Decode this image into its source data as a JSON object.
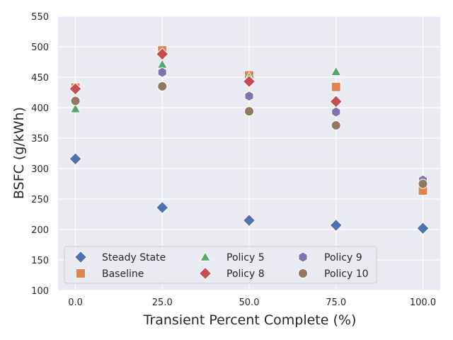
{
  "chart_data": {
    "type": "scatter",
    "title": "",
    "xlabel": "Transient Percent Complete (%)",
    "ylabel": "BSFC (g/kWh)",
    "xlim": [
      -5,
      105
    ],
    "ylim": [
      100,
      550
    ],
    "xticks": [
      0,
      25,
      50,
      75,
      100
    ],
    "xtick_labels": [
      "0.0",
      "25.0",
      "50.0",
      "75.0",
      "100.0"
    ],
    "yticks": [
      100,
      150,
      200,
      250,
      300,
      350,
      400,
      450,
      500,
      550
    ],
    "ytick_labels": [
      "100",
      "150",
      "200",
      "250",
      "300",
      "350",
      "400",
      "450",
      "500",
      "550"
    ],
    "grid": true,
    "background": "#eaeaf2",
    "legend": {
      "placement": "lower-left",
      "columns": 3
    },
    "series": [
      {
        "name": "Steady State",
        "marker": "diamond",
        "color": "#4c72b0",
        "x": [
          0,
          25,
          50,
          75,
          100
        ],
        "y": [
          316,
          236,
          215,
          207,
          202
        ]
      },
      {
        "name": "Baseline",
        "marker": "square",
        "color": "#dd8452",
        "x": [
          0,
          25,
          50,
          75,
          100
        ],
        "y": [
          433,
          494,
          453,
          434,
          264
        ]
      },
      {
        "name": "Policy 5",
        "marker": "triangle",
        "color": "#55a868",
        "x": [
          0,
          25,
          50,
          75
        ],
        "y": [
          398,
          471,
          450,
          459
        ]
      },
      {
        "name": "Policy 8",
        "marker": "diamond",
        "color": "#c44e52",
        "x": [
          0,
          25,
          50,
          75
        ],
        "y": [
          431,
          488,
          443,
          410
        ]
      },
      {
        "name": "Policy 9",
        "marker": "hexagon",
        "color": "#8172b3",
        "x": [
          0,
          25,
          50,
          75,
          100
        ],
        "y": [
          412,
          458,
          419,
          393,
          281
        ]
      },
      {
        "name": "Policy 10",
        "marker": "circle",
        "color": "#937860",
        "x": [
          0,
          25,
          50,
          75,
          100
        ],
        "y": [
          411,
          435,
          394,
          371,
          275
        ]
      }
    ]
  }
}
